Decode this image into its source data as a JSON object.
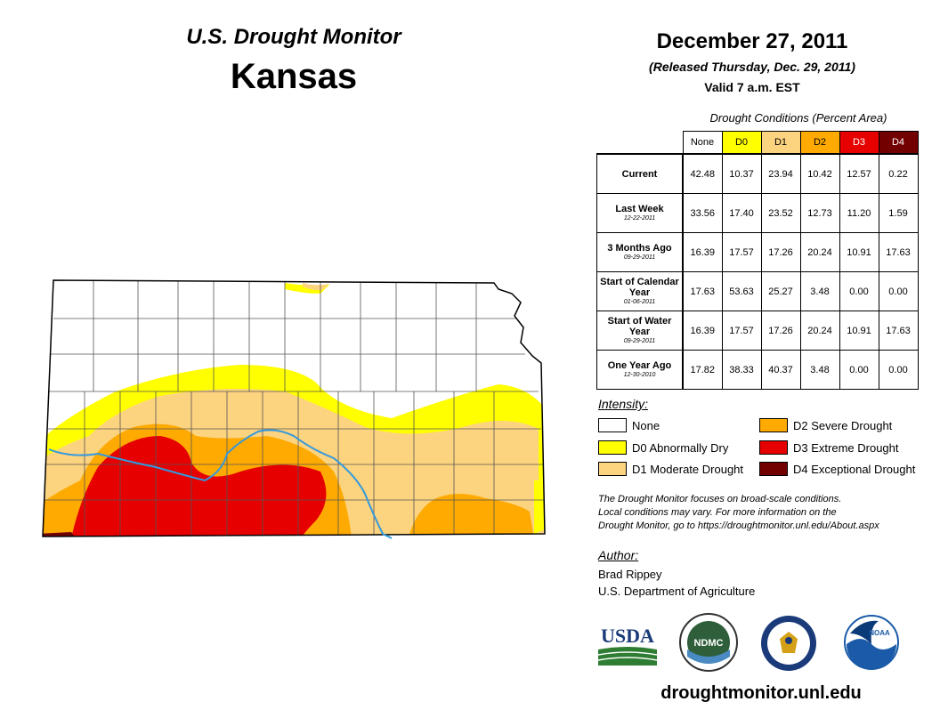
{
  "header": {
    "title": "U.S. Drought Monitor",
    "state": "Kansas",
    "date": "December 27, 2011",
    "released": "(Released Thursday, Dec. 29, 2011)",
    "valid": "Valid 7 a.m. EST"
  },
  "conditions_table": {
    "caption": "Drought Conditions (Percent Area)",
    "columns": [
      "None",
      "D0",
      "D1",
      "D2",
      "D3",
      "D4"
    ],
    "column_colors": [
      "#ffffff",
      "#ffff00",
      "#fcd37f",
      "#ffaa00",
      "#e60000",
      "#730000"
    ],
    "rows": [
      {
        "label": "Current",
        "date": "",
        "values": [
          "42.48",
          "10.37",
          "23.94",
          "10.42",
          "12.57",
          "0.22"
        ]
      },
      {
        "label": "Last Week",
        "date": "12-22-2011",
        "values": [
          "33.56",
          "17.40",
          "23.52",
          "12.73",
          "11.20",
          "1.59"
        ]
      },
      {
        "label": "3 Months Ago",
        "date": "09-29-2011",
        "values": [
          "16.39",
          "17.57",
          "17.26",
          "20.24",
          "10.91",
          "17.63"
        ]
      },
      {
        "label": "Start of Calendar Year",
        "date": "01-06-2011",
        "values": [
          "17.63",
          "53.63",
          "25.27",
          "3.48",
          "0.00",
          "0.00"
        ]
      },
      {
        "label": "Start of Water Year",
        "date": "09-29-2011",
        "values": [
          "16.39",
          "17.57",
          "17.26",
          "20.24",
          "10.91",
          "17.63"
        ]
      },
      {
        "label": "One Year Ago",
        "date": "12-30-2010",
        "values": [
          "17.82",
          "38.33",
          "40.37",
          "3.48",
          "0.00",
          "0.00"
        ]
      }
    ]
  },
  "legend": {
    "title": "Intensity:",
    "items": [
      {
        "label": "None",
        "color": "#ffffff"
      },
      {
        "label": "D0 Abnormally Dry",
        "color": "#ffff00"
      },
      {
        "label": "D1 Moderate Drought",
        "color": "#fcd37f"
      },
      {
        "label": "D2 Severe Drought",
        "color": "#ffaa00"
      },
      {
        "label": "D3 Extreme Drought",
        "color": "#e60000"
      },
      {
        "label": "D4 Exceptional Drought",
        "color": "#730000"
      }
    ]
  },
  "note": {
    "line1": "The Drought Monitor focuses on broad-scale conditions.",
    "line2": "Local conditions may vary. For more information on the",
    "line3": "Drought Monitor, go to https://droughtmonitor.unl.edu/About.aspx"
  },
  "author": {
    "title": "Author:",
    "name": "Brad Rippey",
    "org": "U.S. Department of Agriculture"
  },
  "logos": {
    "usda": "USDA",
    "ndmc": "NDMC",
    "noaa": "NOAA"
  },
  "website": "droughtmonitor.unl.edu",
  "map": {
    "river_color": "#3399dd"
  }
}
